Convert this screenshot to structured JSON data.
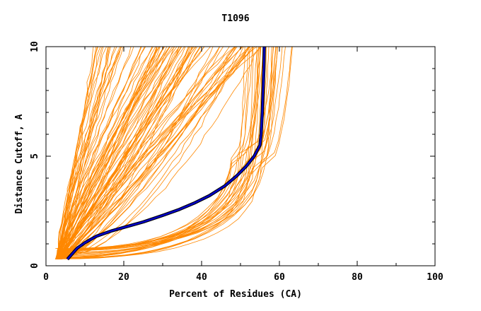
{
  "chart_data": {
    "type": "line",
    "title": "T1096",
    "xlabel": "Percent of Residues (CA)",
    "ylabel": "Distance Cutoff, A",
    "xlim": [
      0,
      100
    ],
    "ylim": [
      0,
      10
    ],
    "x_ticks": [
      "0",
      "20",
      "40",
      "60",
      "80",
      "100"
    ],
    "y_ticks": [
      "0",
      "5",
      "10"
    ],
    "grid": false,
    "legend": "none",
    "colors": {
      "models": "#ff8800",
      "highlight_outer": "#000000",
      "highlight_inner": "#0000cc",
      "axis": "#000000"
    },
    "group_count": 120,
    "series_groups": [
      {
        "name": "",
        "color": "#ff8800",
        "count": 120,
        "x_at_y0_3": [
          2.5,
          4
        ],
        "x_at_y10": [
          11,
          63
        ],
        "shape": "fan from lower-left toward upper plateau"
      }
    ],
    "series": [
      {
        "name": "",
        "color": "#0000cc",
        "x": [
          5.5,
          6.5,
          8,
          10,
          13,
          17,
          21,
          25,
          30,
          34,
          38,
          42,
          46,
          49,
          51.5,
          53.5,
          55,
          55.3,
          55.6,
          55.8,
          56,
          56.1
        ],
        "y": [
          0.3,
          0.5,
          0.8,
          1.05,
          1.35,
          1.6,
          1.8,
          2.0,
          2.3,
          2.55,
          2.85,
          3.2,
          3.65,
          4.1,
          4.55,
          5.0,
          5.5,
          6.0,
          7.0,
          8.0,
          9.0,
          10.0
        ]
      }
    ]
  }
}
